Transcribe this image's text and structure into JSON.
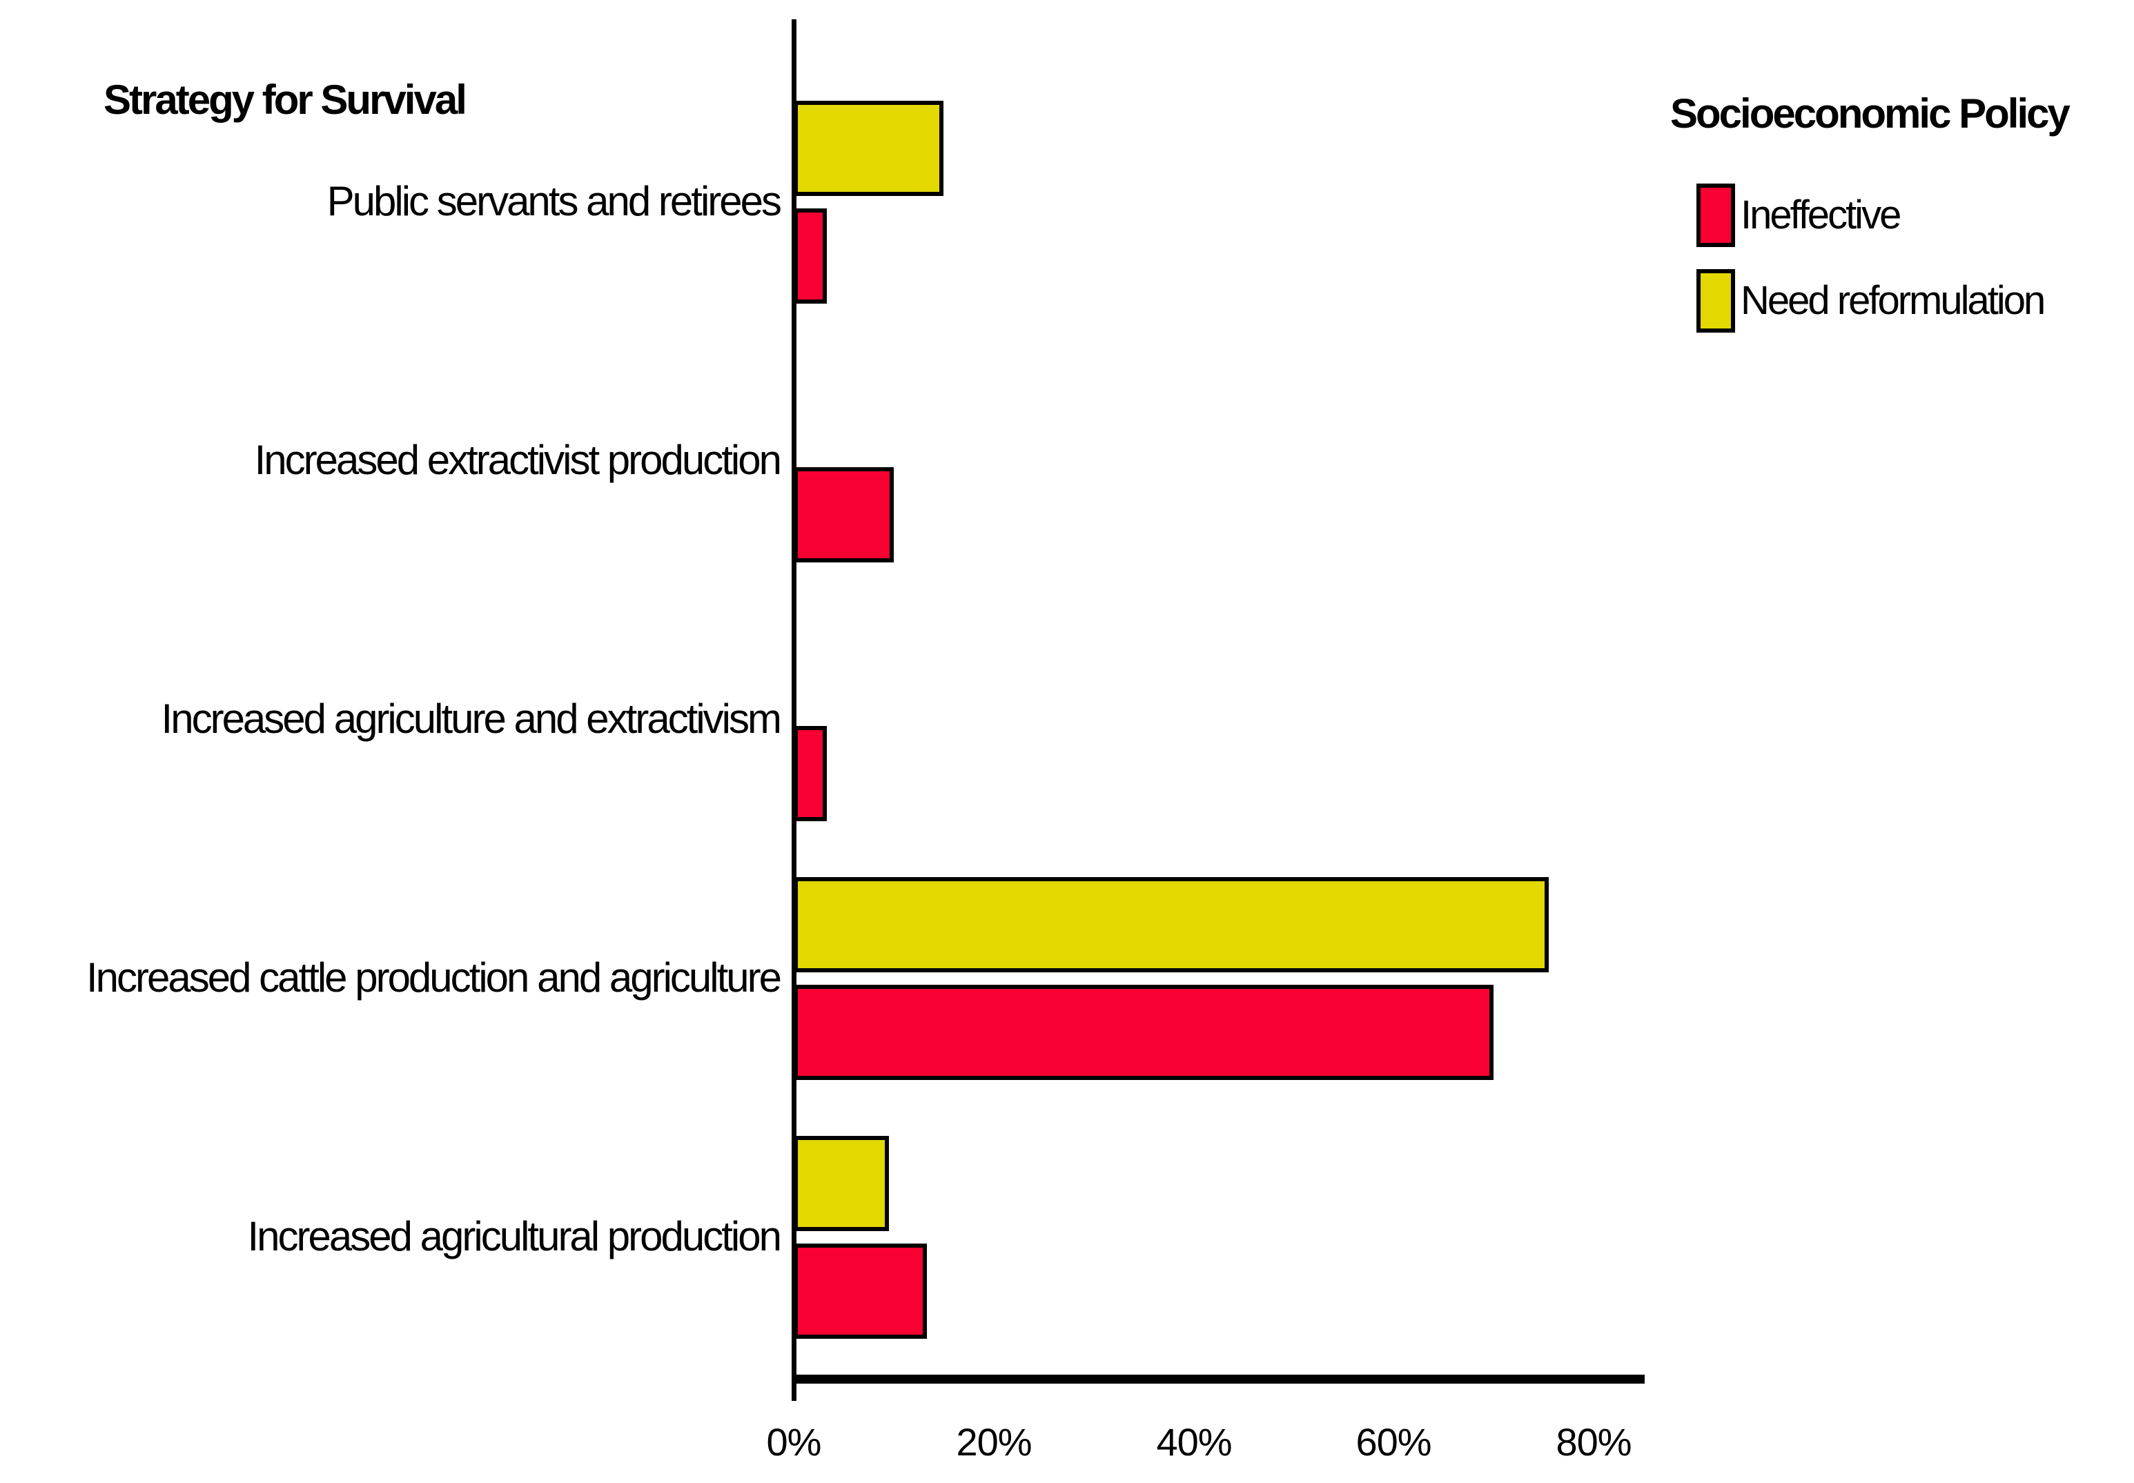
{
  "chart_title": "Strategy for Survival",
  "legend": {
    "title": "Socioeconomic Policy",
    "items": [
      {
        "label": "Ineffective",
        "color": "#F80032"
      },
      {
        "label": "Need reformulation",
        "color": "#E3D800"
      }
    ]
  },
  "chart_data": {
    "type": "bar",
    "orientation": "horizontal",
    "title": "Strategy for Survival",
    "ylabel": "Strategy for Survival",
    "xlabel": "",
    "categories": [
      "Public servants and retirees",
      "Increased extractivist production",
      "Increased agriculture and extractivism",
      "Increased cattle production and agriculture",
      "Increased agricultural production"
    ],
    "series": [
      {
        "name": "Ineffective",
        "color": "#F80032",
        "values": [
          3.3,
          10.0,
          3.3,
          70.0,
          13.3
        ]
      },
      {
        "name": "Need reformulation",
        "color": "#E3D800",
        "values": [
          15.0,
          0,
          0,
          75.5,
          9.5
        ]
      }
    ],
    "x_ticks": [
      "0%",
      "20%",
      "40%",
      "60%",
      "80%"
    ],
    "x_tick_values": [
      0,
      20,
      40,
      60,
      80
    ],
    "xlim": [
      0,
      85
    ],
    "grid": false,
    "legend_title": "Socioeconomic Policy",
    "legend_position": "top-right",
    "bar_border_color": "#000000",
    "axis_color": "#000000"
  }
}
